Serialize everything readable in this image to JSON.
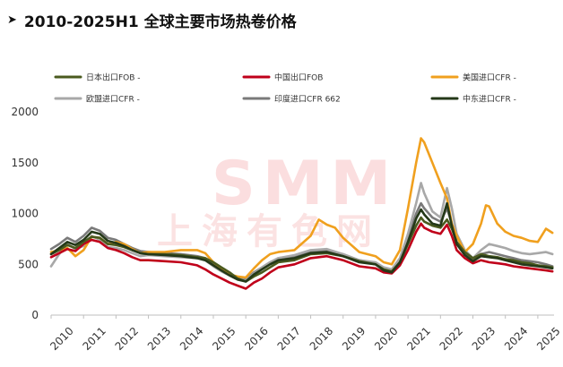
{
  "header": {
    "arrow": "➤",
    "title": "2010-2025H1 全球主要市场热卷价格"
  },
  "watermark": {
    "brand": "SMM",
    "cn": "上海有色网"
  },
  "chart_data": {
    "type": "line",
    "title": "2010-2025H1 全球主要市场热卷价格",
    "xlabel": "",
    "ylabel": "",
    "ylim": [
      0,
      2000
    ],
    "xlim": [
      2010.0,
      2025.5
    ],
    "y_ticks": [
      0,
      500,
      1000,
      1500,
      2000
    ],
    "x_ticks": [
      "2010",
      "2011",
      "2012",
      "2013",
      "2014",
      "2015",
      "2016",
      "2017",
      "2018",
      "2019",
      "2020",
      "2021",
      "2022",
      "2023",
      "2024",
      "2025"
    ],
    "grid": false,
    "legend_position": "top",
    "series": [
      {
        "name": "日本出口FOB -",
        "color": "#4a5a1e",
        "x": [
          2010.0,
          2010.25,
          2010.5,
          2010.75,
          2011.0,
          2011.25,
          2011.5,
          2011.75,
          2012.0,
          2012.25,
          2012.5,
          2012.75,
          2013.0,
          2013.5,
          2014.0,
          2014.5,
          2014.75,
          2015.0,
          2015.25,
          2015.5,
          2015.75,
          2016.0,
          2016.25,
          2016.5,
          2016.75,
          2017.0,
          2017.5,
          2018.0,
          2018.5,
          2019.0,
          2019.5,
          2020.0,
          2020.25,
          2020.5,
          2020.75,
          2021.0,
          2021.25,
          2021.4,
          2021.5,
          2021.75,
          2022.0,
          2022.2,
          2022.35,
          2022.5,
          2022.75,
          2023.0,
          2023.25,
          2023.5,
          2023.75,
          2024.0,
          2024.25,
          2024.5,
          2024.75,
          2025.0,
          2025.25,
          2025.45
        ],
        "y": [
          600,
          640,
          690,
          660,
          720,
          770,
          760,
          700,
          690,
          670,
          640,
          610,
          600,
          600,
          590,
          570,
          560,
          520,
          470,
          420,
          360,
          330,
          380,
          420,
          470,
          520,
          540,
          600,
          610,
          580,
          530,
          500,
          450,
          430,
          520,
          700,
          880,
          960,
          920,
          880,
          860,
          940,
          850,
          720,
          620,
          560,
          600,
          580,
          570,
          550,
          540,
          520,
          510,
          490,
          480,
          470
        ]
      },
      {
        "name": "中国出口FOB",
        "color": "#c0001a",
        "x": [
          2010.0,
          2010.25,
          2010.5,
          2010.75,
          2011.0,
          2011.25,
          2011.5,
          2011.75,
          2012.0,
          2012.25,
          2012.5,
          2012.75,
          2013.0,
          2013.5,
          2014.0,
          2014.5,
          2014.75,
          2015.0,
          2015.25,
          2015.5,
          2015.75,
          2016.0,
          2016.25,
          2016.5,
          2016.75,
          2017.0,
          2017.5,
          2018.0,
          2018.5,
          2019.0,
          2019.5,
          2020.0,
          2020.25,
          2020.5,
          2020.75,
          2021.0,
          2021.25,
          2021.4,
          2021.5,
          2021.75,
          2022.0,
          2022.2,
          2022.35,
          2022.5,
          2022.75,
          2023.0,
          2023.25,
          2023.5,
          2023.75,
          2024.0,
          2024.25,
          2024.5,
          2024.75,
          2025.0,
          2025.25,
          2025.45
        ],
        "y": [
          570,
          610,
          650,
          630,
          700,
          740,
          720,
          660,
          640,
          610,
          570,
          540,
          540,
          530,
          520,
          490,
          450,
          400,
          360,
          320,
          290,
          260,
          320,
          360,
          420,
          470,
          500,
          560,
          580,
          540,
          480,
          460,
          420,
          410,
          490,
          640,
          820,
          900,
          860,
          820,
          800,
          890,
          780,
          640,
          560,
          510,
          540,
          520,
          510,
          500,
          480,
          470,
          460,
          450,
          440,
          430
        ]
      },
      {
        "name": "美国进口CFR -",
        "color": "#f0a01e",
        "x": [
          2010.0,
          2010.25,
          2010.5,
          2010.75,
          2011.0,
          2011.25,
          2011.5,
          2011.75,
          2012.0,
          2012.25,
          2012.5,
          2012.75,
          2013.0,
          2013.5,
          2014.0,
          2014.5,
          2014.75,
          2015.0,
          2015.25,
          2015.5,
          2015.75,
          2016.0,
          2016.25,
          2016.5,
          2016.75,
          2017.0,
          2017.5,
          2018.0,
          2018.25,
          2018.5,
          2018.75,
          2019.0,
          2019.5,
          2020.0,
          2020.25,
          2020.5,
          2020.75,
          2021.0,
          2021.25,
          2021.4,
          2021.5,
          2021.75,
          2022.0,
          2022.2,
          2022.35,
          2022.5,
          2022.75,
          2023.0,
          2023.25,
          2023.4,
          2023.5,
          2023.75,
          2024.0,
          2024.25,
          2024.5,
          2024.75,
          2025.0,
          2025.25,
          2025.45
        ],
        "y": [
          620,
          640,
          660,
          580,
          640,
          770,
          760,
          700,
          720,
          700,
          650,
          610,
          620,
          620,
          640,
          640,
          610,
          520,
          450,
          400,
          380,
          370,
          460,
          540,
          600,
          620,
          640,
          780,
          940,
          890,
          860,
          760,
          620,
          580,
          520,
          500,
          640,
          1050,
          1500,
          1740,
          1700,
          1500,
          1300,
          1150,
          900,
          780,
          620,
          700,
          900,
          1080,
          1070,
          900,
          820,
          780,
          760,
          730,
          720,
          850,
          810
        ]
      },
      {
        "name": "欧盟进口CFR -",
        "color": "#a8a8a8",
        "x": [
          2010.0,
          2010.25,
          2010.5,
          2010.75,
          2011.0,
          2011.25,
          2011.5,
          2011.75,
          2012.0,
          2012.25,
          2012.5,
          2012.75,
          2013.0,
          2013.5,
          2014.0,
          2014.5,
          2014.75,
          2015.0,
          2015.25,
          2015.5,
          2015.75,
          2016.0,
          2016.25,
          2016.5,
          2016.75,
          2017.0,
          2017.5,
          2018.0,
          2018.5,
          2019.0,
          2019.5,
          2020.0,
          2020.25,
          2020.5,
          2020.75,
          2021.0,
          2021.25,
          2021.4,
          2021.5,
          2021.75,
          2022.0,
          2022.2,
          2022.35,
          2022.5,
          2022.75,
          2023.0,
          2023.25,
          2023.5,
          2023.75,
          2024.0,
          2024.25,
          2024.5,
          2024.75,
          2025.0,
          2025.25,
          2025.45
        ],
        "y": [
          480,
          600,
          700,
          650,
          680,
          780,
          740,
          670,
          660,
          640,
          610,
          580,
          590,
          580,
          570,
          560,
          540,
          480,
          430,
          390,
          360,
          340,
          410,
          470,
          520,
          560,
          590,
          640,
          650,
          600,
          540,
          520,
          470,
          450,
          560,
          800,
          1100,
          1300,
          1200,
          1020,
          960,
          1250,
          1050,
          800,
          640,
          560,
          640,
          700,
          680,
          660,
          630,
          610,
          600,
          610,
          620,
          600
        ]
      },
      {
        "name": "印度进口CFR 662",
        "color": "#7a7a7a",
        "x": [
          2010.0,
          2010.25,
          2010.5,
          2010.75,
          2011.0,
          2011.25,
          2011.5,
          2011.75,
          2012.0,
          2012.25,
          2012.5,
          2012.75,
          2013.0,
          2013.5,
          2014.0,
          2014.5,
          2014.75,
          2015.0,
          2015.25,
          2015.5,
          2015.75,
          2016.0,
          2016.25,
          2016.5,
          2016.75,
          2017.0,
          2017.5,
          2018.0,
          2018.5,
          2019.0,
          2019.5,
          2020.0,
          2020.25,
          2020.5,
          2020.75,
          2021.0,
          2021.25,
          2021.4,
          2021.5,
          2021.75,
          2022.0,
          2022.2,
          2022.35,
          2022.5,
          2022.75,
          2023.0,
          2023.25,
          2023.5,
          2023.75,
          2024.0,
          2024.25,
          2024.5,
          2024.75,
          2025.0,
          2025.25,
          2025.45
        ],
        "y": [
          650,
          700,
          760,
          720,
          780,
          860,
          830,
          760,
          740,
          700,
          660,
          630,
          620,
          610,
          600,
          580,
          560,
          500,
          450,
          400,
          370,
          350,
          420,
          470,
          520,
          560,
          580,
          620,
          630,
          590,
          540,
          510,
          460,
          440,
          540,
          760,
          1000,
          1100,
          1050,
          960,
          920,
          1050,
          900,
          720,
          600,
          540,
          600,
          620,
          600,
          580,
          560,
          540,
          530,
          520,
          500,
          480
        ]
      },
      {
        "name": "中东进口CFR -",
        "color": "#243818",
        "x": [
          2010.0,
          2010.25,
          2010.5,
          2010.75,
          2011.0,
          2011.25,
          2011.5,
          2011.75,
          2012.0,
          2012.25,
          2012.5,
          2012.75,
          2013.0,
          2013.5,
          2014.0,
          2014.5,
          2014.75,
          2015.0,
          2015.25,
          2015.5,
          2015.75,
          2016.0,
          2016.25,
          2016.5,
          2016.75,
          2017.0,
          2017.5,
          2018.0,
          2018.5,
          2019.0,
          2019.5,
          2020.0,
          2020.25,
          2020.5,
          2020.75,
          2021.0,
          2021.25,
          2021.4,
          2021.5,
          2021.75,
          2022.0,
          2022.2,
          2022.35,
          2022.5,
          2022.75,
          2023.0,
          2023.25,
          2023.5,
          2023.75,
          2024.0,
          2024.25,
          2024.5,
          2024.75,
          2025.0,
          2025.25,
          2025.45
        ],
        "y": [
          600,
          660,
          720,
          690,
          740,
          820,
          800,
          730,
          710,
          680,
          640,
          610,
          600,
          590,
          580,
          560,
          540,
          490,
          440,
          390,
          350,
          330,
          400,
          450,
          500,
          540,
          560,
          610,
          620,
          580,
          520,
          500,
          440,
          420,
          520,
          720,
          950,
          1040,
          990,
          900,
          880,
          1100,
          880,
          700,
          590,
          530,
          580,
          570,
          560,
          540,
          520,
          500,
          490,
          480,
          470,
          460
        ]
      }
    ]
  }
}
